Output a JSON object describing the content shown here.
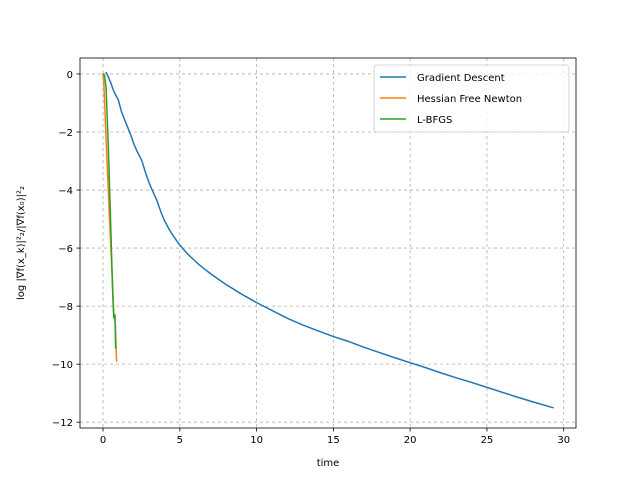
{
  "chart_data": {
    "type": "line",
    "xlabel": "time",
    "ylabel": "log |∇f(x_k)|²₂/|∇f(x₀)|²₂",
    "xlim": [
      -1.5,
      30.8
    ],
    "ylim": [
      -12.2,
      0.55
    ],
    "xticks": [
      0,
      5,
      10,
      15,
      20,
      25,
      30
    ],
    "yticks": [
      0,
      -2,
      -4,
      -6,
      -8,
      -10,
      -12
    ],
    "xtick_labels": [
      "0",
      "5",
      "10",
      "15",
      "20",
      "25",
      "30"
    ],
    "ytick_labels": [
      "0",
      "−2",
      "−4",
      "−6",
      "−8",
      "−10",
      "−12"
    ],
    "grid": true,
    "legend_position": "top-right",
    "series": [
      {
        "name": "Gradient Descent",
        "color": "#1f77b4",
        "x": [
          0.2,
          0.3,
          0.5,
          0.7,
          1.0,
          1.2,
          1.5,
          1.8,
          2.0,
          2.2,
          2.5,
          2.8,
          3.0,
          3.2,
          3.5,
          3.8,
          4.0,
          4.3,
          4.6,
          5.0,
          5.5,
          6.0,
          6.5,
          7.0,
          7.5,
          8.0,
          9.0,
          10.0,
          11.0,
          12.0,
          13.0,
          14.0,
          15.0,
          16.0,
          17.0,
          18.0,
          19.0,
          20.0,
          21.0,
          22.0,
          23.0,
          24.0,
          25.0,
          26.0,
          27.0,
          28.0,
          29.3
        ],
        "y": [
          0.05,
          -0.05,
          -0.3,
          -0.6,
          -0.9,
          -1.3,
          -1.7,
          -2.1,
          -2.4,
          -2.65,
          -2.95,
          -3.45,
          -3.75,
          -4.0,
          -4.35,
          -4.8,
          -5.05,
          -5.35,
          -5.6,
          -5.9,
          -6.2,
          -6.45,
          -6.68,
          -6.88,
          -7.07,
          -7.25,
          -7.58,
          -7.88,
          -8.15,
          -8.42,
          -8.65,
          -8.85,
          -9.05,
          -9.22,
          -9.42,
          -9.6,
          -9.78,
          -9.95,
          -10.12,
          -10.3,
          -10.47,
          -10.63,
          -10.8,
          -10.97,
          -11.14,
          -11.3,
          -11.5
        ]
      },
      {
        "name": "Hessian Free Newton",
        "color": "#ff7f0e",
        "x": [
          0.0,
          0.05,
          0.15,
          0.3,
          0.45,
          0.6,
          0.7,
          0.8,
          0.88
        ],
        "y": [
          0.0,
          -0.3,
          -1.6,
          -3.5,
          -5.3,
          -7.0,
          -8.3,
          -8.6,
          -9.9
        ]
      },
      {
        "name": "L-BFGS",
        "color": "#2ca02c",
        "x": [
          0.0,
          0.1,
          0.2,
          0.35,
          0.5,
          0.62,
          0.7,
          0.78,
          0.82
        ],
        "y": [
          0.0,
          -0.05,
          -0.5,
          -2.6,
          -5.2,
          -7.4,
          -8.4,
          -8.3,
          -9.45
        ]
      }
    ]
  }
}
